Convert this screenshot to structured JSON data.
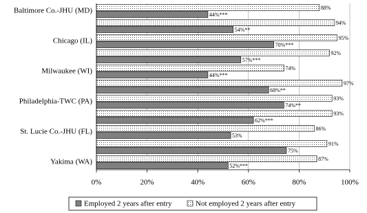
{
  "chart_data": {
    "type": "bar",
    "orientation": "horizontal",
    "categories": [
      "Baltimore Co.-JHU (MD)",
      null,
      "Chicago (IL)",
      null,
      "Milwaukee (WI)",
      null,
      "Philadelphia-TWC (PA)",
      null,
      "St. Lucie Co.-JHU (FL)",
      null,
      "Yakima (WA)"
    ],
    "series": [
      {
        "name": "Employed 2 years after entry",
        "color": "#808080",
        "values": [
          44,
          54,
          70,
          57,
          44,
          68,
          74,
          62,
          53,
          75,
          52
        ],
        "value_labels": [
          "44%***",
          "54%**",
          "70%***",
          "57%***",
          "44%***",
          "68%**",
          "74%**",
          "62%***",
          "53%",
          "75%",
          "52%***"
        ]
      },
      {
        "name": "Not employed 2 years after entry",
        "color": "#ffffff",
        "values": [
          88,
          94,
          95,
          92,
          74,
          97,
          93,
          93,
          86,
          91,
          87
        ],
        "value_labels": [
          "88%",
          "94%",
          "95%",
          "92%",
          "74%",
          "97%",
          "93%",
          "93%",
          "86%",
          "91%",
          "87%"
        ]
      }
    ],
    "xlim": [
      0,
      100
    ],
    "xticks": [
      {
        "value": 0,
        "label": "0%"
      },
      {
        "value": 20,
        "label": "20%"
      },
      {
        "value": 40,
        "label": "40%"
      },
      {
        "value": 60,
        "label": "60%"
      },
      {
        "value": 80,
        "label": "80%"
      },
      {
        "value": 100,
        "label": "100%"
      }
    ],
    "grid": true
  }
}
